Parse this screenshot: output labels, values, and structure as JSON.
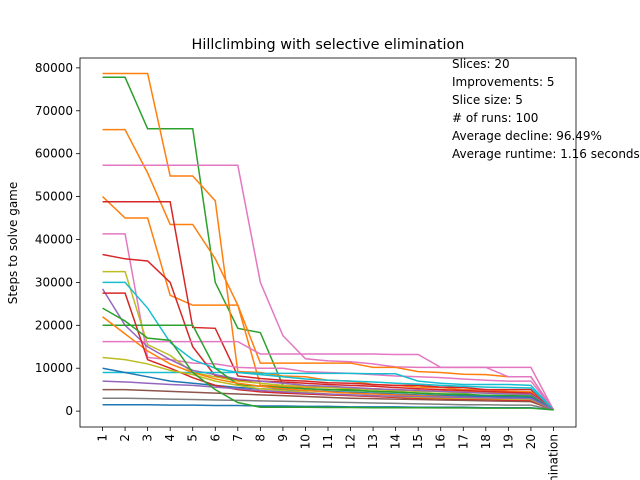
{
  "chart_data": {
    "type": "line",
    "title": "Hillclimbing with selective elimination",
    "y_label": "Steps to solve game",
    "annotations": [
      "Slices: 20",
      "Improvements: 5",
      "Slice size: 5",
      "# of runs: 100",
      "Average decline: 96.49%",
      "Average runtime: 1.16 seconds"
    ],
    "categories": [
      "1",
      "2",
      "3",
      "4",
      "5",
      "6",
      "7",
      "8",
      "9",
      "10",
      "11",
      "12",
      "13",
      "14",
      "15",
      "16",
      "17",
      "18",
      "19",
      "20",
      "Elimination"
    ],
    "ylim": [
      -3700,
      82300
    ],
    "yticks": [
      0,
      10000,
      20000,
      30000,
      40000,
      50000,
      60000,
      70000,
      80000
    ],
    "series": [
      {
        "color": "#2ca02c",
        "values": [
          77800,
          77800,
          65800,
          65800,
          65800,
          30000,
          19300,
          18300,
          6000,
          5200,
          5000,
          5000,
          4600,
          4500,
          4200,
          4000,
          4000,
          3600,
          3500,
          3500,
          300
        ]
      },
      {
        "color": "#ff7f0e",
        "values": [
          78700,
          78700,
          78700,
          54800,
          54800,
          49000,
          9200,
          9000,
          8200,
          8000,
          7200,
          7000,
          6200,
          6000,
          5600,
          5500,
          5000,
          5000,
          4600,
          4500,
          300
        ]
      },
      {
        "color": "#ff7f0e",
        "values": [
          65600,
          65600,
          55500,
          43500,
          43500,
          35500,
          24700,
          6000,
          5800,
          5600,
          5500,
          5300,
          5200,
          5000,
          4800,
          4700,
          4500,
          4400,
          4200,
          4000,
          300
        ]
      },
      {
        "color": "#e377c2",
        "values": [
          57300,
          57300,
          57300,
          57300,
          57300,
          57300,
          57300,
          30000,
          17600,
          12200,
          11700,
          11500,
          11000,
          10300,
          10200,
          10200,
          10200,
          10200,
          10200,
          10200,
          300
        ]
      },
      {
        "color": "#ff7f0e",
        "values": [
          50000,
          45000,
          45000,
          27000,
          24700,
          24700,
          24700,
          11200,
          11200,
          11200,
          11200,
          11200,
          10200,
          10200,
          9200,
          9000,
          8600,
          8500,
          8000,
          8000,
          300
        ]
      },
      {
        "color": "#d62728",
        "values": [
          48800,
          48800,
          48800,
          48800,
          19500,
          19300,
          8200,
          7600,
          7200,
          7000,
          6600,
          6500,
          6200,
          6000,
          6000,
          5600,
          5500,
          5000,
          5000,
          5000,
          300
        ]
      },
      {
        "color": "#e377c2",
        "values": [
          41300,
          41300,
          12500,
          12000,
          11200,
          11000,
          10200,
          10000,
          10000,
          9200,
          9000,
          8800,
          8500,
          8200,
          8000,
          7800,
          7500,
          7200,
          7000,
          7000,
          300
        ]
      },
      {
        "color": "#d62728",
        "values": [
          36500,
          35500,
          35000,
          30000,
          15000,
          8200,
          7200,
          7000,
          6800,
          6500,
          6200,
          6000,
          5800,
          5500,
          5200,
          5000,
          4800,
          4600,
          4400,
          4200,
          300
        ]
      },
      {
        "color": "#bcbd22",
        "values": [
          32500,
          32500,
          15500,
          13000,
          9000,
          8000,
          7000,
          6500,
          6000,
          5800,
          5500,
          5300,
          5000,
          4800,
          4600,
          4500,
          4300,
          4200,
          4000,
          3800,
          300
        ]
      },
      {
        "color": "#17becf",
        "values": [
          30000,
          30000,
          24000,
          16000,
          12000,
          10000,
          9000,
          8500,
          8000,
          7500,
          7200,
          7000,
          6800,
          6500,
          6300,
          6000,
          5800,
          5600,
          5500,
          5400,
          300
        ]
      },
      {
        "color": "#9467bd",
        "values": [
          28500,
          20000,
          15000,
          12000,
          9500,
          8500,
          7500,
          7000,
          6500,
          6000,
          5800,
          5500,
          5200,
          5000,
          4800,
          4600,
          4400,
          4200,
          4000,
          3900,
          300
        ]
      },
      {
        "color": "#e377c2",
        "values": [
          16200,
          16200,
          16200,
          16200,
          16200,
          16200,
          16200,
          13300,
          13300,
          13300,
          13300,
          13300,
          13300,
          13200,
          13200,
          10200,
          10200,
          10200,
          8000,
          8000,
          300
        ]
      },
      {
        "color": "#17becf",
        "values": [
          9000,
          9000,
          9000,
          9000,
          9000,
          9000,
          9000,
          8800,
          8800,
          8800,
          8800,
          8800,
          8700,
          8700,
          7000,
          6500,
          6200,
          6200,
          6200,
          6000,
          300
        ]
      },
      {
        "color": "#2ca02c",
        "values": [
          20000,
          20000,
          20000,
          20000,
          20000,
          10000,
          6200,
          5800,
          5500,
          5200,
          5000,
          4800,
          4600,
          4400,
          4200,
          4000,
          3800,
          3700,
          3600,
          3500,
          300
        ]
      },
      {
        "color": "#1f77b4",
        "values": [
          10000,
          9000,
          8000,
          7000,
          6500,
          6000,
          5500,
          5200,
          5000,
          4800,
          4600,
          4400,
          4200,
          4000,
          3800,
          3600,
          3500,
          3400,
          3300,
          3200,
          300
        ]
      },
      {
        "color": "#8c564b",
        "values": [
          5000,
          5000,
          4800,
          4600,
          4400,
          4200,
          4000,
          3800,
          3600,
          3400,
          3200,
          3000,
          2900,
          2800,
          2700,
          2600,
          2500,
          2400,
          2300,
          2200,
          300
        ]
      },
      {
        "color": "#7f7f7f",
        "values": [
          3000,
          3000,
          2900,
          2800,
          2700,
          2600,
          2500,
          2400,
          2300,
          2200,
          2100,
          2000,
          1900,
          1800,
          1700,
          1600,
          1500,
          1500,
          1400,
          1400,
          300
        ]
      },
      {
        "color": "#1f77b4",
        "values": [
          1500,
          1500,
          1500,
          1400,
          1400,
          1300,
          1300,
          1200,
          1200,
          1100,
          1100,
          1000,
          1000,
          1000,
          900,
          900,
          900,
          800,
          800,
          800,
          300
        ]
      },
      {
        "color": "#ff7f0e",
        "values": [
          22000,
          18000,
          14000,
          11000,
          9000,
          7500,
          6500,
          5800,
          5200,
          4800,
          4500,
          4200,
          4000,
          3800,
          3600,
          3400,
          3200,
          3000,
          2900,
          2800,
          300
        ]
      },
      {
        "color": "#d62728",
        "values": [
          27500,
          27500,
          12000,
          10000,
          7800,
          6000,
          5000,
          4500,
          4200,
          4000,
          3800,
          3600,
          3400,
          3200,
          3000,
          2900,
          2800,
          2700,
          2600,
          2500,
          300
        ]
      },
      {
        "color": "#bcbd22",
        "values": [
          12500,
          12000,
          11000,
          9500,
          8500,
          7000,
          6000,
          5200,
          4800,
          4400,
          4000,
          3800,
          3600,
          3400,
          3200,
          3100,
          3000,
          2900,
          2800,
          2700,
          300
        ]
      },
      {
        "color": "#9467bd",
        "values": [
          7000,
          6800,
          6500,
          6200,
          6000,
          5600,
          5200,
          4800,
          4500,
          4200,
          4000,
          3800,
          3600,
          3500,
          3400,
          3300,
          3200,
          3100,
          3000,
          2900,
          300
        ]
      },
      {
        "color": "#2ca02c",
        "values": [
          24000,
          21000,
          17000,
          16500,
          9000,
          5000,
          2000,
          900,
          900,
          900,
          850,
          850,
          800,
          800,
          800,
          750,
          750,
          700,
          700,
          700,
          300
        ]
      }
    ]
  }
}
